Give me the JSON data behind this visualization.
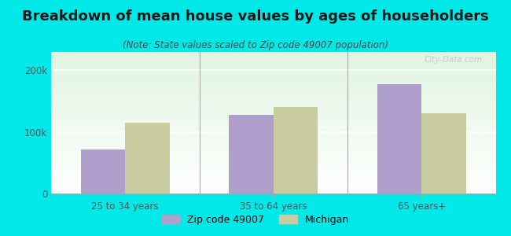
{
  "title": "Breakdown of mean house values by ages of householders",
  "subtitle": "(Note: State values scaled to Zip code 49007 population)",
  "categories": [
    "25 to 34 years",
    "35 to 64 years",
    "65 years+"
  ],
  "zip_values": [
    72000,
    128000,
    178000
  ],
  "michigan_values": [
    115000,
    140000,
    130000
  ],
  "zip_color": "#b09fcc",
  "michigan_color": "#c8cc9f",
  "background_color": "#00e8e8",
  "yticks": [
    0,
    100000,
    200000
  ],
  "ytick_labels": [
    "0",
    "100k",
    "200k"
  ],
  "ylim": [
    0,
    230000
  ],
  "bar_width": 0.3,
  "legend_zip_label": "Zip code 49007",
  "legend_michigan_label": "Michigan",
  "title_fontsize": 13,
  "subtitle_fontsize": 8.5,
  "tick_fontsize": 8.5,
  "legend_fontsize": 9,
  "watermark": "City-Data.com"
}
